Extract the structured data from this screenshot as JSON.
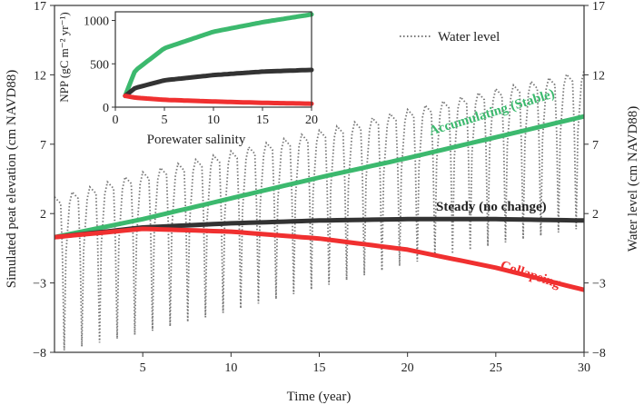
{
  "chart_data": {
    "type": "line",
    "title": "",
    "xlabel": "Time (year)",
    "ylabel": "Simulated peat elevation (cm NAVD88)",
    "y2label": "Water level (cm NAVD88)",
    "xlim": [
      0,
      30
    ],
    "ylim": [
      -8,
      17
    ],
    "xticks": [
      "5",
      "10",
      "15",
      "20",
      "25",
      "30"
    ],
    "yticks": [
      "-8",
      "-3",
      "2",
      "7",
      "12",
      "17"
    ],
    "grid": false,
    "legend": {
      "label": "Water level",
      "placement": "top-right"
    },
    "x": [
      0,
      5,
      10,
      15,
      20,
      25,
      30
    ],
    "series": [
      {
        "name": "Accumulating (Stable)",
        "color": "#3cb96e",
        "values": [
          0.3,
          1.6,
          3.1,
          4.6,
          6.0,
          7.5,
          9.0
        ]
      },
      {
        "name": "Steady (no change)",
        "color": "#333333",
        "values": [
          0.3,
          1.0,
          1.3,
          1.5,
          1.6,
          1.6,
          1.5
        ]
      },
      {
        "name": "Collapsing",
        "color": "#f03030",
        "values": [
          0.3,
          0.9,
          0.7,
          0.2,
          -0.6,
          -1.9,
          -3.5
        ]
      }
    ],
    "water_level": {
      "name": "Water level",
      "color": "#777777",
      "upper_envelope": [
        3.2,
        5.0,
        6.5,
        8.0,
        9.5,
        11.0,
        12.3
      ],
      "lower_envelope": [
        -8.0,
        -6.6,
        -5.0,
        -3.3,
        -1.6,
        -0.2,
        1.0
      ]
    },
    "inset": {
      "type": "line",
      "xlabel": "Porewater salinity",
      "ylabel": "NPP (gC m⁻² yr⁻¹)",
      "xlim": [
        0,
        20
      ],
      "ylim": [
        0,
        1100
      ],
      "xticks": [
        "0",
        "5",
        "10",
        "15",
        "20"
      ],
      "yticks": [
        "0",
        "500",
        "1000"
      ],
      "x": [
        1,
        2,
        5,
        10,
        15,
        20
      ],
      "series": [
        {
          "name": "Accumulating",
          "color": "#3cb96e",
          "values": [
            130,
            420,
            680,
            870,
            980,
            1070
          ]
        },
        {
          "name": "Steady",
          "color": "#333333",
          "values": [
            130,
            220,
            310,
            370,
            410,
            430
          ]
        },
        {
          "name": "Collapsing",
          "color": "#f03030",
          "values": [
            130,
            110,
            85,
            65,
            50,
            40
          ]
        }
      ]
    }
  }
}
